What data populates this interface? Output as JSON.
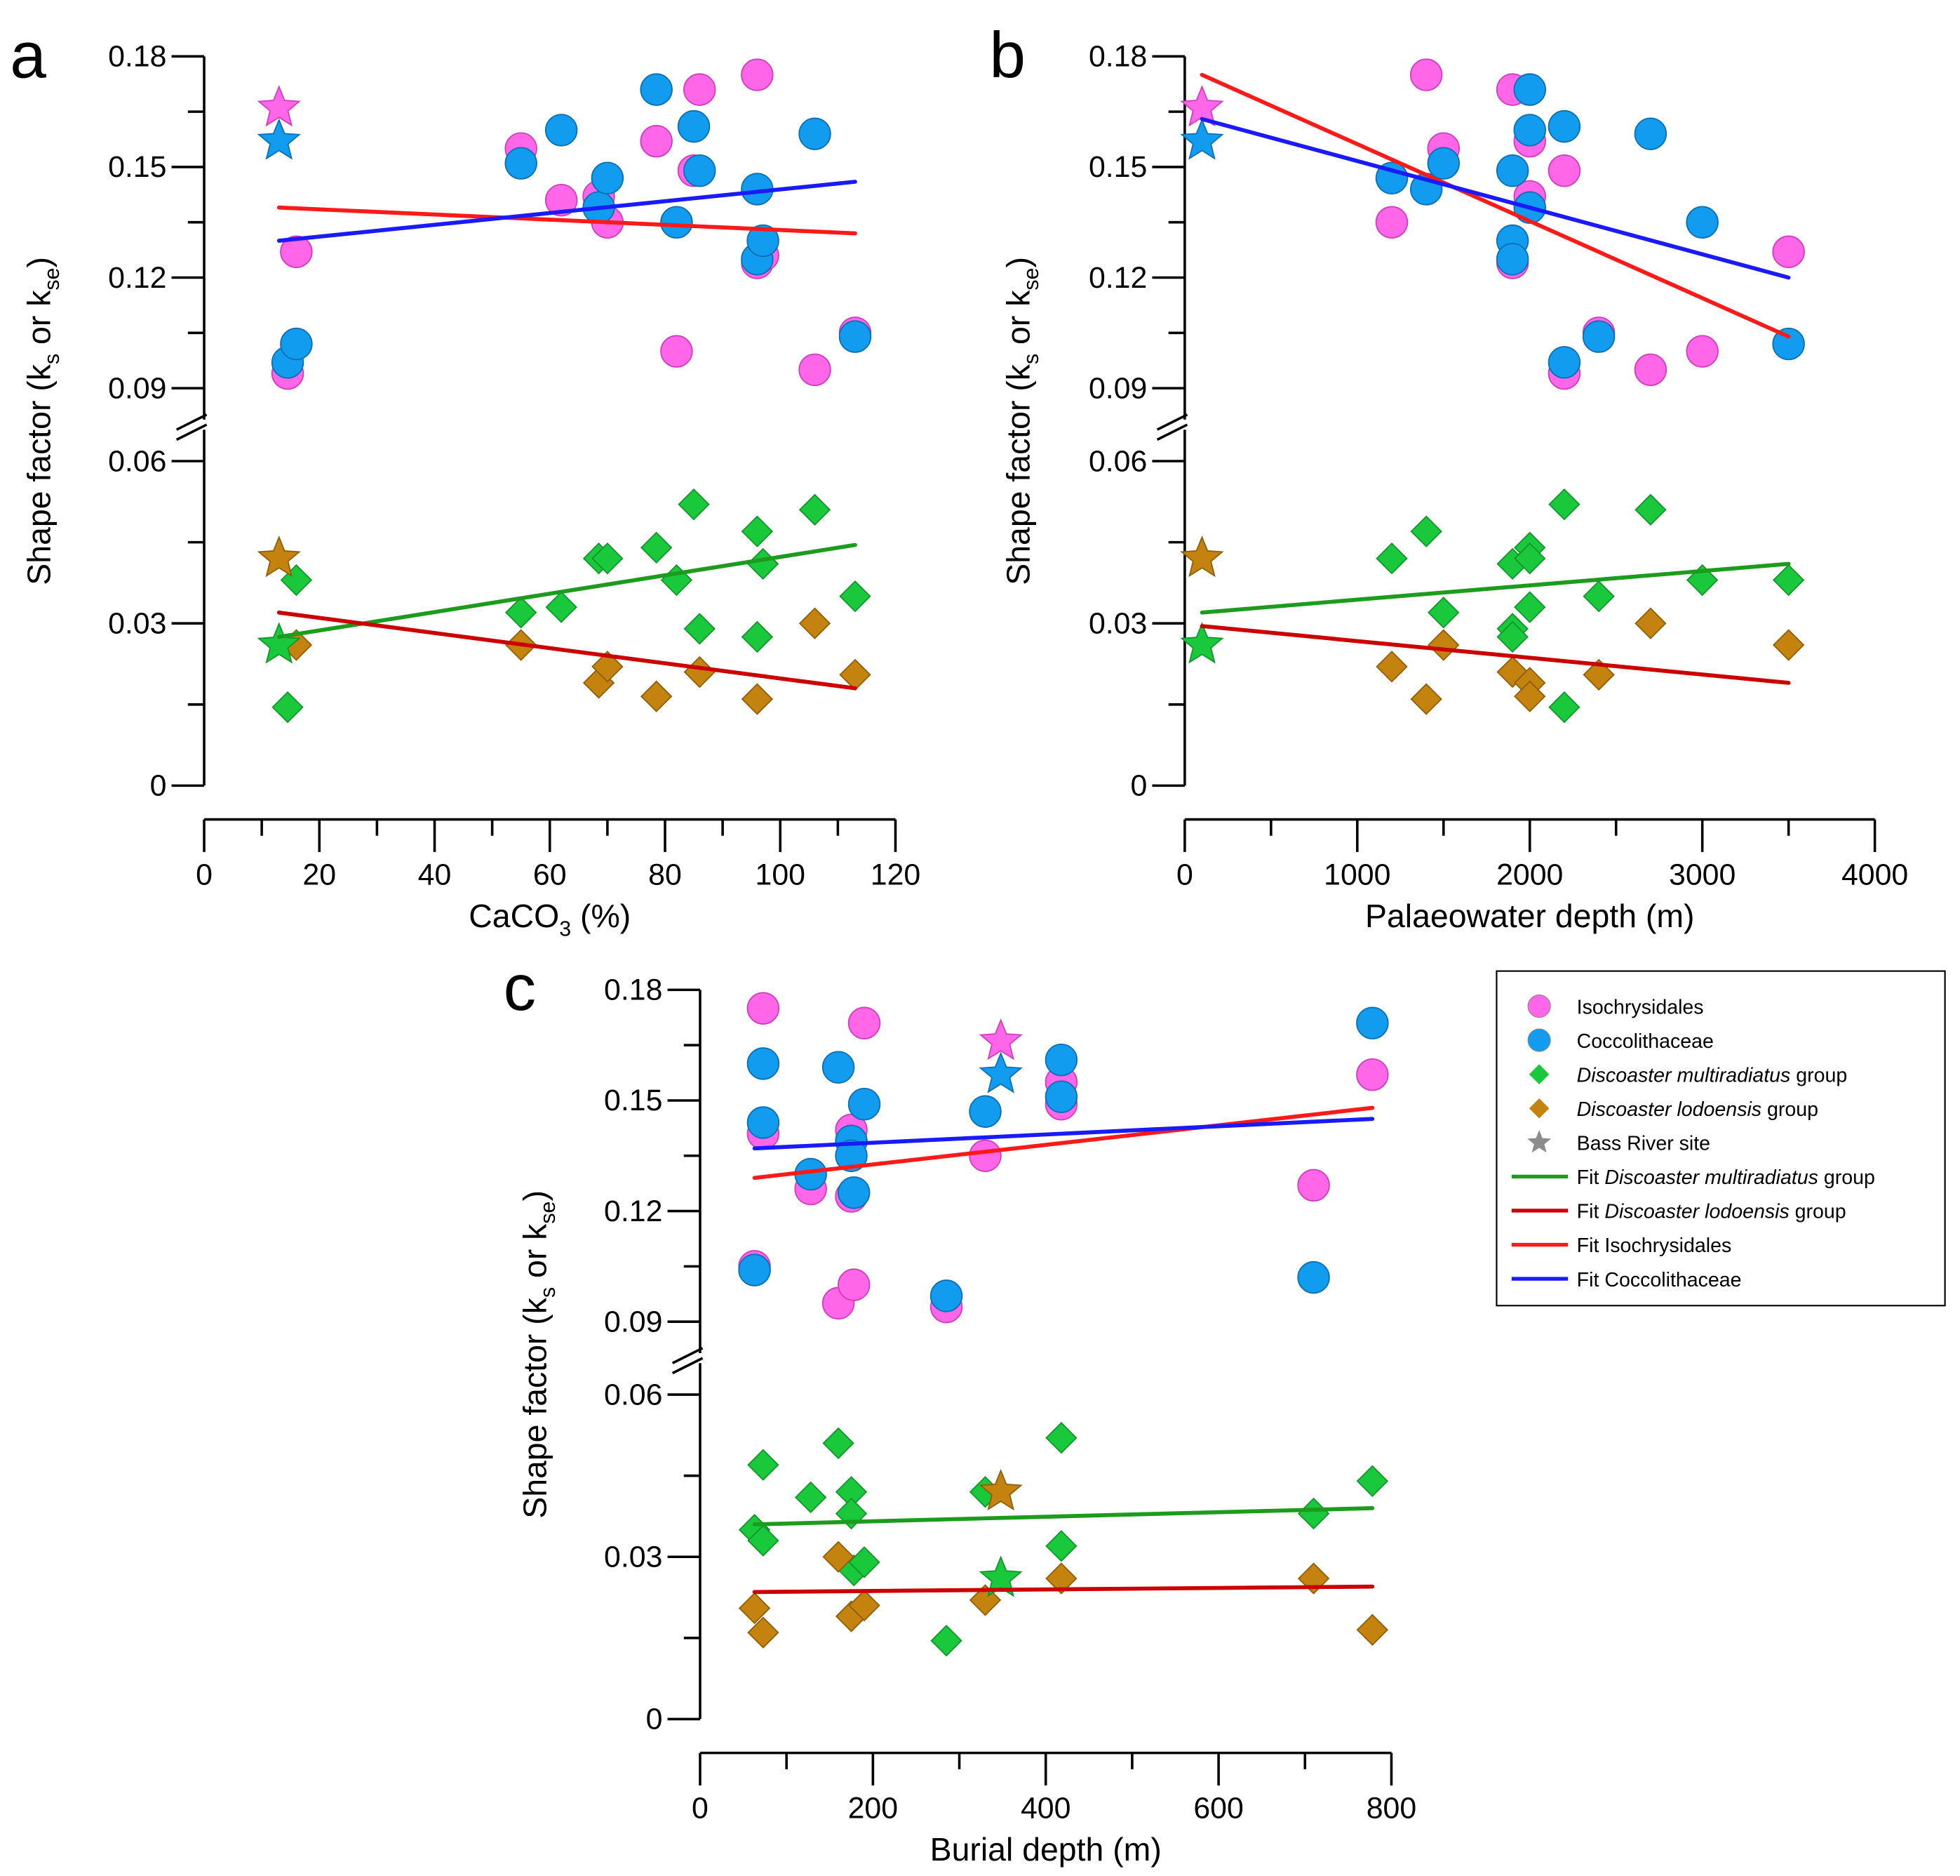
{
  "figure": {
    "legend": {
      "entries": [
        {
          "kind": "circle",
          "color": "#ff66e8",
          "label": "Isochrysidales"
        },
        {
          "kind": "circle",
          "color": "#119cf0",
          "label": "Coccolithaceae"
        },
        {
          "kind": "diamond",
          "color": "#19c93b",
          "label_italic": "Discoaster multiradiatus",
          "label_rest": " group"
        },
        {
          "kind": "diamond",
          "color": "#c4820e",
          "label_italic": "Discoaster lodoensis",
          "label_rest": " group"
        },
        {
          "kind": "star",
          "color": "#8c8c8c",
          "label": "Bass River site"
        },
        {
          "kind": "line",
          "color": "#1d9b1d",
          "label_prefix": "Fit ",
          "label_italic": "Discoaster multiradiatus",
          "label_rest": " group"
        },
        {
          "kind": "line",
          "color": "#cc0000",
          "label_prefix": "Fit ",
          "label_italic": "Discoaster lodoensis",
          "label_rest": " group"
        },
        {
          "kind": "line",
          "color": "#ff1a1a",
          "label_prefix": "Fit ",
          "label": "Isochrysidales"
        },
        {
          "kind": "line",
          "color": "#1a1aff",
          "label_prefix": "Fit ",
          "label": "Coccolithaceae"
        }
      ]
    },
    "colors": {
      "isochrysidales": "#ff66e8",
      "coccolithaceae": "#119cf0",
      "multiradiatus": "#19c93b",
      "lodoensis": "#c4820e",
      "fit_multiradiatus": "#1d9b1d",
      "fit_lodoensis": "#cc0000",
      "fit_isochrysidales": "#ff1a1a",
      "fit_coccolithaceae": "#1a1aff"
    }
  },
  "chart_data": [
    {
      "panel": "a",
      "type": "scatter",
      "xlabel": "CaCO",
      "xlabel_sub": "3",
      "xlabel_rest": " (%)",
      "ylabel_parts": [
        "Shape factor (k",
        "s",
        " or k",
        "se",
        ")"
      ],
      "xlim": [
        0,
        120
      ],
      "x_ticks": [
        0,
        20,
        40,
        60,
        80,
        100,
        120
      ],
      "x_tick_labels": [
        "0",
        "20",
        "40",
        "60",
        "80",
        "100",
        "120"
      ],
      "y_upper_ticks": [
        "0.09",
        "0.12",
        "0.15",
        "0.18"
      ],
      "y_lower_ticks": [
        "0",
        "0.03",
        "0.06"
      ],
      "y_axis_break": true,
      "series": [
        {
          "name": "Isochrysidales",
          "marker": "circle",
          "x": [
            14.5,
            16,
            55,
            62,
            68.5,
            70,
            78.5,
            82,
            85,
            86,
            96,
            96,
            97,
            106,
            113
          ],
          "y": [
            0.094,
            0.127,
            0.155,
            0.141,
            0.142,
            0.135,
            0.157,
            0.1,
            0.149,
            0.171,
            0.175,
            0.124,
            0.126,
            0.095,
            0.105
          ]
        },
        {
          "name": "Coccolithaceae",
          "marker": "circle",
          "x": [
            14.5,
            16,
            55,
            62,
            68.5,
            70,
            78.5,
            82,
            85,
            86,
            96,
            96,
            97,
            106,
            113
          ],
          "y": [
            0.097,
            0.102,
            0.151,
            0.16,
            0.139,
            0.147,
            0.171,
            0.135,
            0.161,
            0.149,
            0.144,
            0.125,
            0.13,
            0.159,
            0.104
          ]
        },
        {
          "name": "Discoaster multiradiatus group",
          "marker": "diamond",
          "x": [
            14.5,
            16,
            55,
            62,
            68.5,
            70,
            78.5,
            82,
            85,
            86,
            96,
            96,
            97,
            106,
            113
          ],
          "y": [
            0.0145,
            0.038,
            0.032,
            0.033,
            0.042,
            0.042,
            0.044,
            0.038,
            0.052,
            0.029,
            0.047,
            0.0275,
            0.041,
            0.051,
            0.035
          ]
        },
        {
          "name": "Discoaster lodoensis group",
          "marker": "diamond",
          "x": [
            16,
            55,
            68.5,
            70,
            78.5,
            86,
            96,
            106,
            113
          ],
          "y": [
            0.026,
            0.026,
            0.019,
            0.022,
            0.0165,
            0.021,
            0.016,
            0.03,
            0.0205
          ]
        }
      ],
      "bass_river": [
        {
          "series": "Isochrysidales",
          "x": 13,
          "y": 0.166
        },
        {
          "series": "Coccolithaceae",
          "x": 13,
          "y": 0.157
        },
        {
          "series": "Discoaster lodoensis group",
          "x": 13,
          "y": 0.042
        },
        {
          "series": "Discoaster multiradiatus group",
          "x": 13,
          "y": 0.026
        }
      ],
      "fits": [
        {
          "series": "Isochrysidales",
          "x": [
            13,
            113
          ],
          "y": [
            0.139,
            0.132
          ]
        },
        {
          "series": "Coccolithaceae",
          "x": [
            13,
            113
          ],
          "y": [
            0.13,
            0.146
          ]
        },
        {
          "series": "Discoaster multiradiatus group",
          "x": [
            13,
            113
          ],
          "y": [
            0.0275,
            0.0445
          ]
        },
        {
          "series": "Discoaster lodoensis group",
          "x": [
            13,
            113
          ],
          "y": [
            0.032,
            0.018
          ]
        }
      ]
    },
    {
      "panel": "b",
      "type": "scatter",
      "xlabel": "Palaeowater depth (m)",
      "ylabel_parts": [
        "Shape factor (k",
        "s",
        " or k",
        "se",
        ")"
      ],
      "xlim": [
        0,
        4000
      ],
      "x_ticks": [
        0,
        1000,
        2000,
        3000,
        4000
      ],
      "x_tick_labels": [
        "0",
        "1000",
        "2000",
        "3000",
        "4000"
      ],
      "y_upper_ticks": [
        "0.09",
        "0.12",
        "0.15",
        "0.18"
      ],
      "y_lower_ticks": [
        "0",
        "0.03",
        "0.06"
      ],
      "y_axis_break": true,
      "series": [
        {
          "name": "Isochrysidales",
          "marker": "circle",
          "x": [
            1200,
            1400,
            1500,
            1900,
            1900,
            2000,
            2000,
            2200,
            2200,
            2400,
            2700,
            3000,
            3500
          ],
          "y": [
            0.135,
            0.175,
            0.155,
            0.171,
            0.124,
            0.157,
            0.142,
            0.149,
            0.094,
            0.105,
            0.095,
            0.1,
            0.127
          ]
        },
        {
          "name": "Coccolithaceae",
          "marker": "circle",
          "x": [
            1200,
            1400,
            1500,
            1900,
            1900,
            1900,
            2000,
            2000,
            2000,
            2200,
            2200,
            2400,
            2700,
            3000,
            3500
          ],
          "y": [
            0.147,
            0.144,
            0.151,
            0.149,
            0.13,
            0.125,
            0.171,
            0.16,
            0.139,
            0.161,
            0.097,
            0.104,
            0.159,
            0.135,
            0.102
          ]
        },
        {
          "name": "Discoaster multiradiatus group",
          "marker": "diamond",
          "x": [
            1200,
            1400,
            1500,
            1900,
            1900,
            1900,
            2000,
            2000,
            2000,
            2200,
            2200,
            2400,
            2700,
            3000,
            3500
          ],
          "y": [
            0.042,
            0.047,
            0.032,
            0.041,
            0.029,
            0.0275,
            0.044,
            0.042,
            0.033,
            0.052,
            0.0145,
            0.035,
            0.051,
            0.038,
            0.038
          ]
        },
        {
          "name": "Discoaster lodoensis group",
          "marker": "diamond",
          "x": [
            1200,
            1400,
            1500,
            1900,
            2000,
            2000,
            2400,
            2700,
            3500
          ],
          "y": [
            0.022,
            0.016,
            0.026,
            0.021,
            0.019,
            0.0165,
            0.0205,
            0.03,
            0.026
          ]
        }
      ],
      "bass_river": [
        {
          "series": "Isochrysidales",
          "x": 100,
          "y": 0.166
        },
        {
          "series": "Coccolithaceae",
          "x": 100,
          "y": 0.157
        },
        {
          "series": "Discoaster lodoensis group",
          "x": 100,
          "y": 0.042
        },
        {
          "series": "Discoaster multiradiatus group",
          "x": 100,
          "y": 0.026
        }
      ],
      "fits": [
        {
          "series": "Isochrysidales",
          "x": [
            100,
            3500
          ],
          "y": [
            0.175,
            0.104
          ]
        },
        {
          "series": "Coccolithaceae",
          "x": [
            100,
            3500
          ],
          "y": [
            0.163,
            0.12
          ]
        },
        {
          "series": "Discoaster multiradiatus group",
          "x": [
            100,
            3500
          ],
          "y": [
            0.032,
            0.041
          ]
        },
        {
          "series": "Discoaster lodoensis group",
          "x": [
            100,
            3500
          ],
          "y": [
            0.0295,
            0.019
          ]
        }
      ]
    },
    {
      "panel": "c",
      "type": "scatter",
      "xlabel": "Burial depth (m)",
      "ylabel_parts": [
        "Shape factor (k",
        "s",
        " or k",
        "se",
        ")"
      ],
      "xlim": [
        0,
        800
      ],
      "x_ticks": [
        0,
        200,
        400,
        600,
        800
      ],
      "x_tick_labels": [
        "0",
        "200",
        "400",
        "600",
        "800"
      ],
      "y_upper_ticks": [
        "0.09",
        "0.12",
        "0.15",
        "0.18"
      ],
      "y_lower_ticks": [
        "0",
        "0.03",
        "0.06"
      ],
      "y_axis_break": true,
      "series": [
        {
          "name": "Isochrysidales",
          "marker": "circle",
          "x": [
            63,
            73,
            73,
            128,
            160,
            175,
            175,
            178,
            190,
            285,
            330,
            418,
            418,
            710,
            778
          ],
          "y": [
            0.105,
            0.175,
            0.141,
            0.126,
            0.095,
            0.142,
            0.124,
            0.1,
            0.171,
            0.094,
            0.135,
            0.155,
            0.149,
            0.127,
            0.157
          ]
        },
        {
          "name": "Coccolithaceae",
          "marker": "circle",
          "x": [
            63,
            73,
            73,
            128,
            160,
            175,
            175,
            178,
            190,
            285,
            330,
            418,
            418,
            710,
            778
          ],
          "y": [
            0.104,
            0.16,
            0.144,
            0.13,
            0.159,
            0.139,
            0.135,
            0.125,
            0.149,
            0.097,
            0.147,
            0.161,
            0.151,
            0.102,
            0.171
          ]
        },
        {
          "name": "Discoaster multiradiatus group",
          "marker": "diamond",
          "x": [
            63,
            73,
            73,
            128,
            160,
            175,
            175,
            178,
            190,
            285,
            330,
            418,
            418,
            710,
            778
          ],
          "y": [
            0.035,
            0.047,
            0.033,
            0.041,
            0.051,
            0.042,
            0.038,
            0.0275,
            0.029,
            0.0145,
            0.042,
            0.052,
            0.032,
            0.038,
            0.044
          ]
        },
        {
          "name": "Discoaster lodoensis group",
          "marker": "diamond",
          "x": [
            63,
            73,
            160,
            175,
            190,
            330,
            418,
            710,
            778
          ],
          "y": [
            0.0205,
            0.016,
            0.03,
            0.019,
            0.021,
            0.022,
            0.026,
            0.026,
            0.0165
          ]
        }
      ],
      "bass_river": [
        {
          "series": "Isochrysidales",
          "x": 348,
          "y": 0.166
        },
        {
          "series": "Coccolithaceae",
          "x": 348,
          "y": 0.157
        },
        {
          "series": "Discoaster lodoensis group",
          "x": 348,
          "y": 0.042
        },
        {
          "series": "Discoaster multiradiatus group",
          "x": 348,
          "y": 0.026
        }
      ],
      "fits": [
        {
          "series": "Isochrysidales",
          "x": [
            63,
            778
          ],
          "y": [
            0.129,
            0.148
          ]
        },
        {
          "series": "Coccolithaceae",
          "x": [
            63,
            778
          ],
          "y": [
            0.137,
            0.145
          ]
        },
        {
          "series": "Discoaster multiradiatus group",
          "x": [
            63,
            778
          ],
          "y": [
            0.036,
            0.039
          ]
        },
        {
          "series": "Discoaster lodoensis group",
          "x": [
            63,
            778
          ],
          "y": [
            0.0235,
            0.0245
          ]
        }
      ]
    }
  ]
}
